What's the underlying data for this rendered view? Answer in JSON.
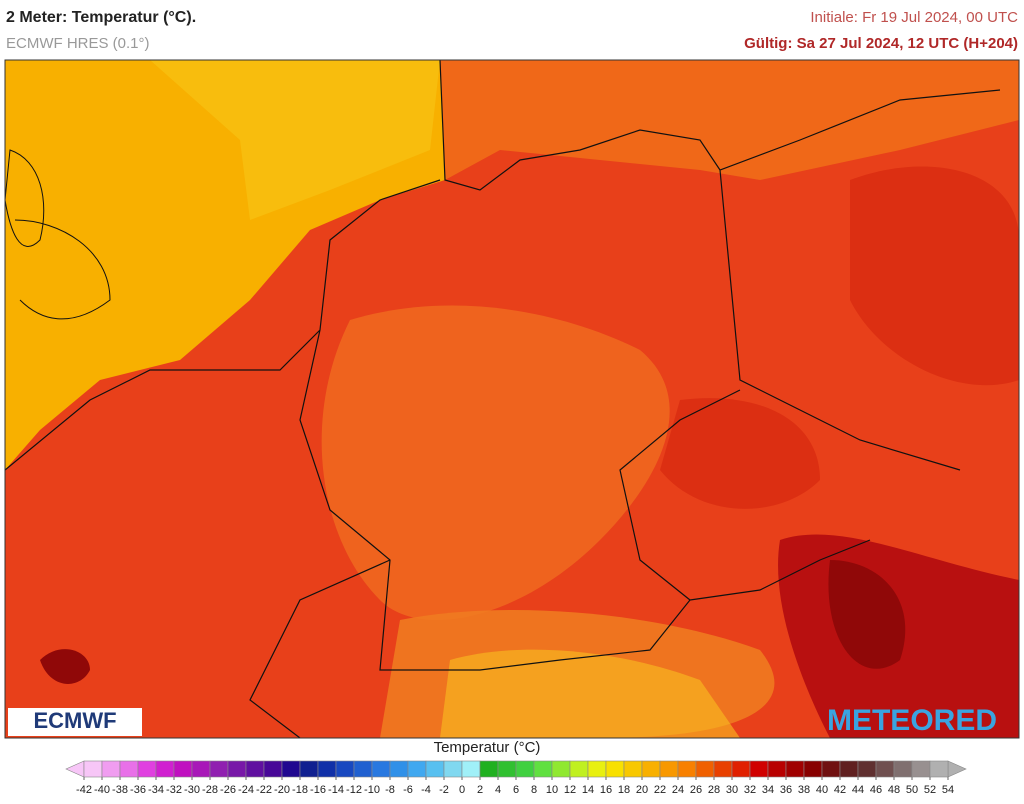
{
  "header": {
    "title": "2 Meter: Temperatur (°C).",
    "model": "ECMWF HRES (0.1°)",
    "init": "Initiale: Fr 19 Jul 2024, 00 UTC",
    "valid": "Gültig: Sa 27 Jul 2024, 12 UTC (H+204)"
  },
  "legend": {
    "title": "Temperatur (°C)",
    "ticks": [
      -42,
      -40,
      -38,
      -36,
      -34,
      -32,
      -30,
      -28,
      -26,
      -24,
      -22,
      -20,
      -18,
      -16,
      -14,
      -12,
      -10,
      -8,
      -6,
      -4,
      -2,
      0,
      2,
      4,
      6,
      8,
      10,
      12,
      14,
      16,
      18,
      20,
      22,
      24,
      26,
      28,
      30,
      32,
      34,
      36,
      38,
      40,
      42,
      44,
      46,
      48,
      50,
      52,
      54
    ],
    "colors": [
      "#f7c6f7",
      "#f09df0",
      "#e870e8",
      "#e040e0",
      "#d020d0",
      "#c010c0",
      "#a818b8",
      "#9020b0",
      "#7818a8",
      "#6010a0",
      "#480898",
      "#200890",
      "#102090",
      "#1030a8",
      "#1848c0",
      "#2060d0",
      "#2878e0",
      "#3090e8",
      "#40a8f0",
      "#58c0f0",
      "#80d8f0",
      "#a0f0f8",
      "#20b020",
      "#30c030",
      "#40d040",
      "#60e040",
      "#90e830",
      "#c0f020",
      "#e8f010",
      "#f8e000",
      "#f8c800",
      "#f8b000",
      "#f89800",
      "#f88000",
      "#f06000",
      "#e84000",
      "#e02000",
      "#d00000",
      "#b80000",
      "#a00000",
      "#880000",
      "#701010",
      "#602020",
      "#603030",
      "#705050",
      "#807070",
      "#989090",
      "#b0b0b0"
    ]
  },
  "logos": {
    "left": "ECMWF",
    "right": "METEORED"
  }
}
